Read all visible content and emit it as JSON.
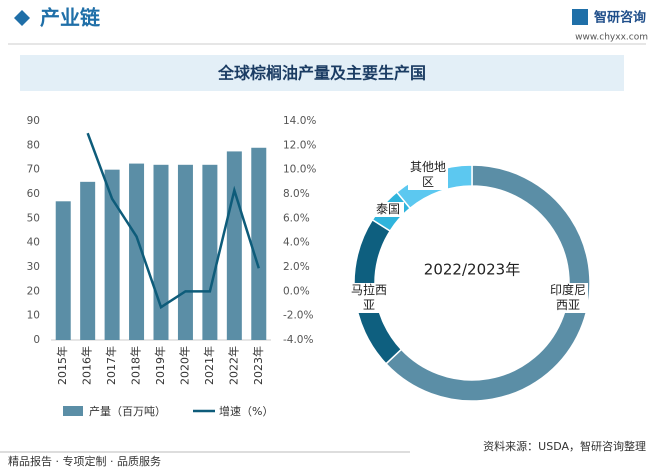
{
  "header": {
    "title": "产业链",
    "brand": "智研咨询",
    "url": "www.chyxx.com"
  },
  "banner": "全球棕榈油产量及主要生产国",
  "chart_data": [
    {
      "type": "bar",
      "categories": [
        "2015年",
        "2016年",
        "2017年",
        "2018年",
        "2019年",
        "2020年",
        "2021年",
        "2022年",
        "2023年"
      ],
      "series": [
        {
          "name": "产量（百万吨）",
          "type": "bar",
          "color": "#5b8ea6",
          "values": [
            57,
            65,
            70,
            72.5,
            72,
            72,
            72,
            77.5,
            79
          ]
        },
        {
          "name": "增速（%）",
          "type": "line",
          "axis": "y2",
          "color": "#0e5c7a",
          "values": [
            null,
            13,
            7.6,
            4.5,
            -1.3,
            0,
            0,
            8.3,
            1.9
          ]
        }
      ],
      "ylim": [
        0,
        90
      ],
      "yticks": [
        0,
        10,
        20,
        30,
        40,
        50,
        60,
        70,
        80,
        90
      ],
      "y2lim": [
        -4,
        14
      ],
      "y2ticks": [
        {
          "value": -4,
          "label": "-4.0%"
        },
        {
          "value": -2,
          "label": "-2.0%"
        },
        {
          "value": 0,
          "label": "0.0%"
        },
        {
          "value": 2,
          "label": "2.0%"
        },
        {
          "value": 4,
          "label": "4.0%"
        },
        {
          "value": 6,
          "label": "6.0%"
        },
        {
          "value": 8,
          "label": "8.0%"
        },
        {
          "value": 10,
          "label": "10.0%"
        },
        {
          "value": 12,
          "label": "12.0%"
        },
        {
          "value": 14,
          "label": "14.0%"
        }
      ],
      "legend": "bottom"
    },
    {
      "type": "donut",
      "center_label": "2022/2023年",
      "categories": [
        "印度尼西亚",
        "马拉西亚",
        "泰国",
        "其他地区"
      ],
      "values": [
        63,
        21,
        5,
        11
      ],
      "colors": [
        "#5b8ea6",
        "#0e5f7f",
        "#2fb4dc",
        "#5cc8f0"
      ]
    }
  ],
  "footer": {
    "left": "精品报告 · 专项定制 · 品质服务",
    "source": "资料来源：USDA，智研咨询整理"
  }
}
